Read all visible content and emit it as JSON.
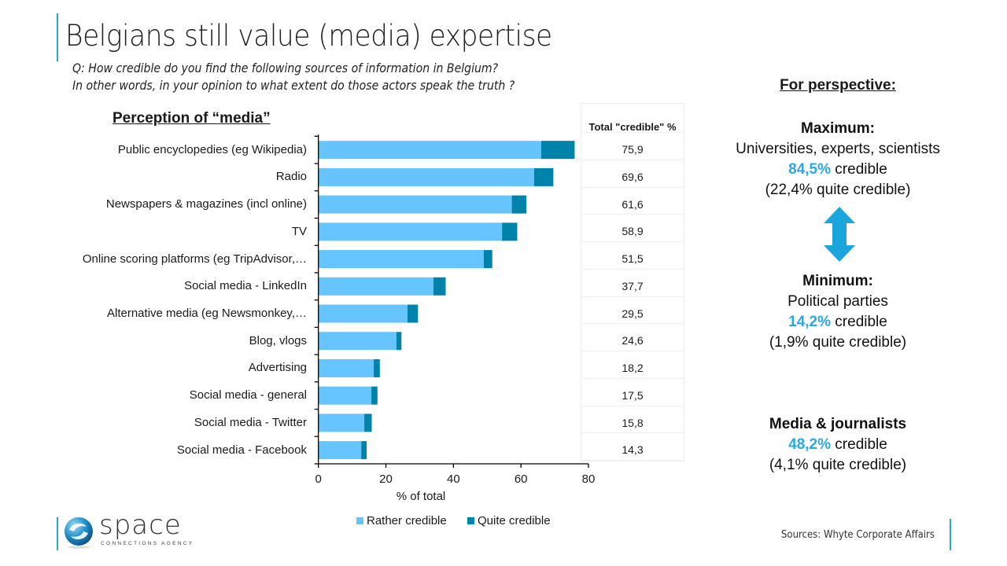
{
  "slide": {
    "title": "Belgians still value (media) expertise",
    "question_line1": "Q: How credible do you find the following sources of information in Belgium?",
    "question_line2": "In other words, in your opinion to what extent do those actors speak the truth ?",
    "source": "Sources: Whyte Corporate Affairs",
    "logo": {
      "word": "space",
      "tagline": "CONNECTIONS AGENCY"
    }
  },
  "colors": {
    "rather_credible": "#66c4ff",
    "quite_credible": "#0083aa",
    "highlight": "#29a8e8",
    "accent_line": "#2aa7b8",
    "arrow": "#1aa6dd"
  },
  "chart_data": {
    "type": "bar",
    "orientation": "horizontal",
    "stacked": true,
    "title": "Perception of “media”",
    "xlabel": "% of total",
    "ylabel": "",
    "xlim": [
      0,
      80
    ],
    "xticks": [
      0,
      20,
      40,
      60,
      80
    ],
    "grid": false,
    "legend_position": "bottom",
    "categories": [
      "Public encyclopedies (eg Wikipedia)",
      "Radio",
      "Newspapers & magazines (incl online)",
      "TV",
      "Online scoring platforms (eg TripAdvisor,…",
      "Social media - LinkedIn",
      "Alternative media (eg Newsmonkey,…",
      "Blog, vlogs",
      "Advertising",
      "Social media - general",
      "Social media - Twitter",
      "Social media - Facebook"
    ],
    "series": [
      {
        "name": "Rather credible",
        "values": [
          66.0,
          63.9,
          57.3,
          54.4,
          49.0,
          34.1,
          26.4,
          23.1,
          16.4,
          15.7,
          13.6,
          12.7
        ]
      },
      {
        "name": "Quite credible",
        "values": [
          9.9,
          5.7,
          4.3,
          4.5,
          2.5,
          3.6,
          3.1,
          1.5,
          1.8,
          1.8,
          2.2,
          1.6
        ]
      }
    ],
    "table": {
      "header": "Total \"credible\" %",
      "values": [
        "75,9",
        "69,6",
        "61,6",
        "58,9",
        "51,5",
        "37,7",
        "29,5",
        "24,6",
        "18,2",
        "17,5",
        "15,8",
        "14,3"
      ]
    }
  },
  "perspective": {
    "title": "For perspective:",
    "maximum": {
      "label": "Maximum:",
      "subject": "Universities, experts, scientists",
      "pct": "84,5%",
      "suffix": " credible",
      "quite": "(22,4% quite credible)"
    },
    "minimum": {
      "label": "Minimum:",
      "subject": "Political parties",
      "pct": "14,2%",
      "suffix": " credible",
      "quite": "(1,9% quite credible)"
    },
    "media": {
      "label": "Media & journalists",
      "pct": "48,2%",
      "suffix": " credible",
      "quite": "(4,1% quite credible)"
    },
    "arrow_icon": "double-arrow-vertical"
  }
}
